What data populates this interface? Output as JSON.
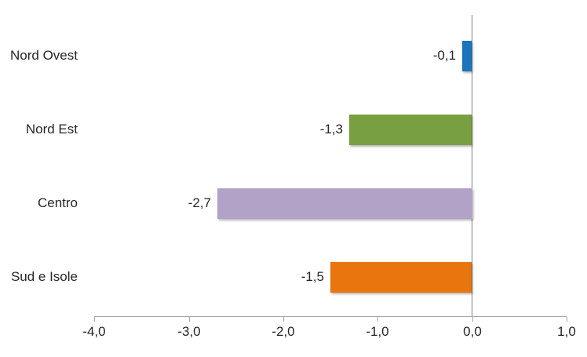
{
  "chart_data": {
    "type": "bar",
    "orientation": "horizontal",
    "title": "",
    "xlabel": "",
    "ylabel": "",
    "categories": [
      "Nord Ovest",
      "Nord Est",
      "Centro",
      "Sud e Isole"
    ],
    "values": [
      -0.1,
      -1.3,
      -2.7,
      -1.5
    ],
    "value_labels": [
      "-0,1",
      "-1,3",
      "-2,7",
      "-1,5"
    ],
    "bar_colors": [
      "#1B75BC",
      "#79A040",
      "#B3A2C8",
      "#E8750E"
    ],
    "xlim": [
      -4.0,
      1.0
    ],
    "x_ticks": [
      -4,
      -3,
      -2,
      -1,
      0,
      1
    ],
    "x_tick_labels": [
      "-4,0",
      "-3,0",
      "-2,0",
      "-1,0",
      "0,0",
      "1,0"
    ],
    "grid": false,
    "legend": false,
    "colors": {
      "axis": "#A6A6A6",
      "zero_line": "#808080",
      "text": "#262626",
      "background": "#FFFFFF"
    }
  }
}
